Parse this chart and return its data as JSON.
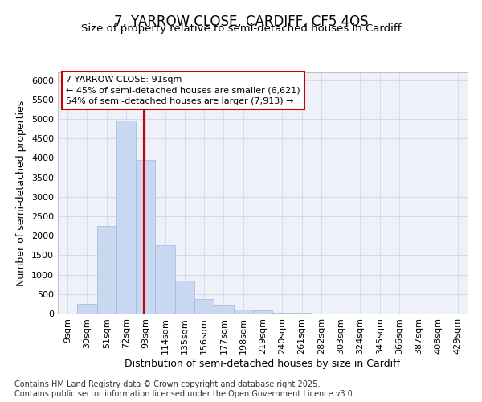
{
  "title_line1": "7, YARROW CLOSE, CARDIFF, CF5 4QS",
  "title_line2": "Size of property relative to semi-detached houses in Cardiff",
  "xlabel": "Distribution of semi-detached houses by size in Cardiff",
  "ylabel": "Number of semi-detached properties",
  "categories": [
    "9sqm",
    "30sqm",
    "51sqm",
    "72sqm",
    "93sqm",
    "114sqm",
    "135sqm",
    "156sqm",
    "177sqm",
    "198sqm",
    "219sqm",
    "240sqm",
    "261sqm",
    "282sqm",
    "303sqm",
    "324sqm",
    "345sqm",
    "366sqm",
    "387sqm",
    "408sqm",
    "429sqm"
  ],
  "values": [
    0,
    250,
    2250,
    4950,
    3950,
    1750,
    850,
    380,
    220,
    100,
    80,
    30,
    15,
    5,
    2,
    1,
    0,
    0,
    0,
    0,
    0
  ],
  "bar_color": "#c8d8f0",
  "bar_edge_color": "#a0b8d8",
  "bar_edge_width": 0.5,
  "vline_color": "#cc0000",
  "vline_x_index": 4,
  "annotation_text": "7 YARROW CLOSE: 91sqm\n← 45% of semi-detached houses are smaller (6,621)\n54% of semi-detached houses are larger (7,913) →",
  "annotation_box_color": "#cc0000",
  "ylim_max": 6200,
  "yticks": [
    0,
    500,
    1000,
    1500,
    2000,
    2500,
    3000,
    3500,
    4000,
    4500,
    5000,
    5500,
    6000
  ],
  "grid_color": "#d0d8e8",
  "plot_bg_color": "#eef2f8",
  "fig_bg_color": "#ffffff",
  "footnote": "Contains HM Land Registry data © Crown copyright and database right 2025.\nContains public sector information licensed under the Open Government Licence v3.0.",
  "title_fontsize": 12,
  "subtitle_fontsize": 9.5,
  "axis_label_fontsize": 9,
  "tick_fontsize": 8,
  "footnote_fontsize": 7,
  "annotation_fontsize": 8
}
